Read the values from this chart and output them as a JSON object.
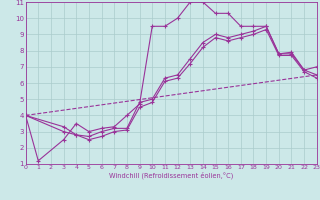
{
  "xlabel": "Windchill (Refroidissement éolien,°C)",
  "bg_color": "#cce8e8",
  "grid_color": "#aacccc",
  "line_color": "#993399",
  "xlim": [
    0,
    23
  ],
  "ylim": [
    1,
    11
  ],
  "xticks": [
    0,
    1,
    2,
    3,
    4,
    5,
    6,
    7,
    8,
    9,
    10,
    11,
    12,
    13,
    14,
    15,
    16,
    17,
    18,
    19,
    20,
    21,
    22,
    23
  ],
  "yticks": [
    1,
    2,
    3,
    4,
    5,
    6,
    7,
    8,
    9,
    10,
    11
  ],
  "series1_x": [
    0,
    1,
    3,
    4,
    5,
    6,
    7,
    8,
    9,
    10,
    11,
    12,
    13,
    14,
    15,
    16,
    17,
    18,
    19,
    20,
    21,
    22,
    23
  ],
  "series1_y": [
    4.0,
    1.2,
    2.5,
    3.5,
    3.0,
    3.2,
    3.3,
    4.0,
    4.7,
    9.5,
    9.5,
    10.0,
    11.0,
    11.0,
    10.3,
    10.3,
    9.5,
    9.5,
    9.5,
    7.8,
    7.9,
    6.8,
    7.0
  ],
  "series2_x": [
    0,
    3,
    4,
    5,
    6,
    7,
    8,
    9,
    10,
    11,
    12,
    13,
    14,
    15,
    16,
    17,
    18,
    19,
    20,
    21,
    22,
    23
  ],
  "series2_y": [
    4.0,
    3.3,
    2.8,
    2.7,
    3.0,
    3.2,
    3.2,
    4.8,
    5.0,
    6.3,
    6.5,
    7.5,
    8.5,
    9.0,
    8.8,
    9.0,
    9.2,
    9.5,
    7.8,
    7.8,
    6.8,
    6.5
  ],
  "series3_x": [
    0,
    3,
    4,
    5,
    6,
    7,
    8,
    9,
    10,
    11,
    12,
    13,
    14,
    15,
    16,
    17,
    18,
    19,
    20,
    21,
    22,
    23
  ],
  "series3_y": [
    4.0,
    3.0,
    2.8,
    2.5,
    2.7,
    3.0,
    3.1,
    4.5,
    4.8,
    6.1,
    6.3,
    7.2,
    8.2,
    8.8,
    8.6,
    8.8,
    9.0,
    9.3,
    7.7,
    7.7,
    6.7,
    6.3
  ],
  "series4_x": [
    0,
    23
  ],
  "series4_y": [
    4.0,
    6.5
  ]
}
